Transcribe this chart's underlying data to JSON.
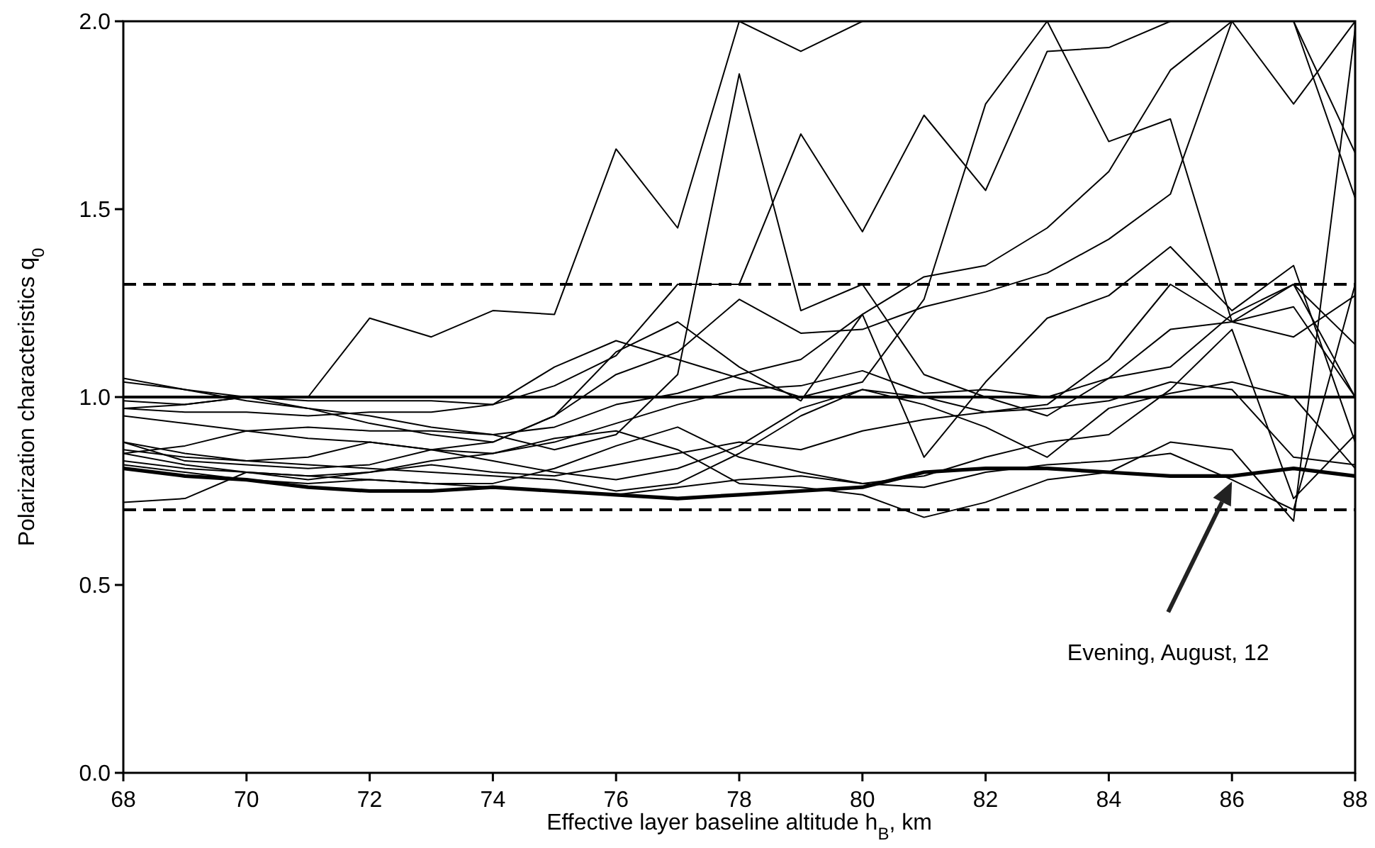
{
  "chart_data": {
    "type": "line",
    "xlabel": "Effective layer baseline altitude h$_{B}$, km",
    "ylabel": "Polarization characteristics q$_{0}$",
    "x": [
      68,
      69,
      70,
      71,
      72,
      73,
      74,
      75,
      76,
      77,
      78,
      79,
      80,
      81,
      82,
      83,
      84,
      85,
      86,
      87,
      88
    ],
    "xlim": [
      68,
      88
    ],
    "xticks": [
      68,
      70,
      72,
      74,
      76,
      78,
      80,
      82,
      84,
      86,
      88
    ],
    "ylim": [
      0,
      2
    ],
    "yticks": [
      {
        "value": 0,
        "label": "0.0"
      },
      {
        "value": 0.5,
        "label": "0.5"
      },
      {
        "value": 1,
        "label": "1.0"
      },
      {
        "value": 1.5,
        "label": "1.5"
      },
      {
        "value": 2,
        "label": "2.0"
      }
    ],
    "grid": false,
    "marker": "none",
    "line_style": "solid",
    "ref_lines": [
      {
        "axis": "y",
        "value": 1.3,
        "color": "#000000",
        "line_style": "dashed"
      },
      {
        "axis": "y",
        "value": 1.0,
        "color": "#000000",
        "line_style": "solid"
      },
      {
        "axis": "y",
        "value": 0.7,
        "color": "#000000",
        "line_style": "dashed"
      }
    ],
    "series": [
      {
        "color": "#000000",
        "values": [
          0.97,
          0.98,
          1.0,
          1.0,
          1.21,
          1.16,
          1.23,
          1.22,
          1.66,
          1.45,
          2.0,
          1.92,
          2.0,
          2.0,
          2.0,
          2.0,
          2.0,
          2.0,
          2.0,
          2.0,
          2.0
        ]
      },
      {
        "color": "#000000",
        "values": [
          1.05,
          1.02,
          0.99,
          0.97,
          0.95,
          0.92,
          0.9,
          0.86,
          0.9,
          1.06,
          1.86,
          1.23,
          1.3,
          1.06,
          1.0,
          0.95,
          1.05,
          1.18,
          1.2,
          1.3,
          1.0
        ]
      },
      {
        "color": "#000000",
        "values": [
          0.99,
          0.98,
          1.0,
          0.99,
          0.99,
          0.99,
          0.98,
          1.03,
          1.11,
          1.3,
          1.3,
          1.7,
          1.44,
          1.75,
          1.55,
          1.92,
          1.93,
          2.0,
          2.0,
          1.78,
          2.0
        ]
      },
      {
        "color": "#000000",
        "values": [
          1.04,
          1.02,
          1.0,
          0.97,
          0.93,
          0.9,
          0.88,
          0.95,
          1.06,
          1.12,
          1.26,
          1.17,
          1.18,
          1.24,
          1.28,
          1.33,
          1.42,
          1.54,
          2.0,
          2.0,
          1.65
        ]
      },
      {
        "color": "#000000",
        "values": [
          0.97,
          0.96,
          0.96,
          0.95,
          0.96,
          0.96,
          0.98,
          1.08,
          1.15,
          1.1,
          1.05,
          1.0,
          1.04,
          1.26,
          1.78,
          2.0,
          1.68,
          1.74,
          1.2,
          1.16,
          1.27
        ]
      },
      {
        "color": "#000000",
        "values": [
          0.88,
          0.83,
          0.82,
          0.81,
          0.82,
          0.86,
          0.88,
          0.95,
          1.12,
          1.2,
          1.08,
          0.99,
          1.22,
          0.84,
          1.04,
          1.21,
          1.27,
          1.4,
          1.23,
          1.35,
          0.88
        ]
      },
      {
        "color": "#000000",
        "values": [
          0.95,
          0.93,
          0.91,
          0.92,
          0.91,
          0.91,
          0.9,
          0.92,
          0.98,
          1.01,
          1.06,
          1.1,
          1.22,
          1.32,
          1.35,
          1.45,
          1.6,
          1.87,
          2.0,
          2.0,
          1.53
        ]
      },
      {
        "color": "#000000",
        "values": [
          0.85,
          0.87,
          0.91,
          0.89,
          0.88,
          0.86,
          0.85,
          0.88,
          0.93,
          0.98,
          1.02,
          1.03,
          1.07,
          1.01,
          1.02,
          1.0,
          1.05,
          1.08,
          1.22,
          1.3,
          1.14
        ]
      },
      {
        "color": "#000000",
        "values": [
          0.86,
          0.84,
          0.83,
          0.84,
          0.88,
          0.86,
          0.83,
          0.8,
          0.78,
          0.81,
          0.87,
          0.97,
          1.02,
          1.0,
          0.96,
          0.97,
          0.99,
          1.04,
          1.02,
          0.84,
          0.82
        ]
      },
      {
        "color": "#000000",
        "values": [
          0.83,
          0.81,
          0.8,
          0.79,
          0.8,
          0.82,
          0.8,
          0.79,
          0.82,
          0.85,
          0.88,
          0.86,
          0.91,
          0.94,
          0.96,
          0.98,
          1.1,
          1.3,
          1.2,
          1.24,
          1.0
        ]
      },
      {
        "color": "#000000",
        "values": [
          0.82,
          0.8,
          0.78,
          0.77,
          0.78,
          0.77,
          0.77,
          0.81,
          0.87,
          0.92,
          0.84,
          0.8,
          0.77,
          0.79,
          0.84,
          0.88,
          0.9,
          1.02,
          1.18,
          0.73,
          0.9
        ]
      },
      {
        "color": "#000000",
        "values": [
          0.72,
          0.73,
          0.8,
          0.78,
          0.8,
          0.83,
          0.85,
          0.89,
          0.91,
          0.86,
          0.77,
          0.76,
          0.74,
          0.68,
          0.72,
          0.78,
          0.8,
          0.88,
          0.86,
          0.67,
          1.98
        ]
      },
      {
        "color": "#000000",
        "values": [
          0.88,
          0.85,
          0.83,
          0.82,
          0.81,
          0.8,
          0.79,
          0.78,
          0.75,
          0.77,
          0.85,
          0.95,
          1.02,
          0.98,
          0.92,
          0.84,
          0.97,
          1.01,
          1.04,
          1.0,
          0.81
        ]
      },
      {
        "color": "#000000",
        "values": [
          0.85,
          0.82,
          0.8,
          0.79,
          0.78,
          0.77,
          0.76,
          0.75,
          0.74,
          0.76,
          0.78,
          0.79,
          0.77,
          0.76,
          0.8,
          0.82,
          0.83,
          0.85,
          0.78,
          0.7,
          1.3
        ]
      },
      {
        "name": "Evening, August, 12",
        "color": "#000000",
        "values": [
          0.81,
          0.79,
          0.78,
          0.76,
          0.75,
          0.75,
          0.76,
          0.75,
          0.74,
          0.73,
          0.74,
          0.75,
          0.76,
          0.8,
          0.81,
          0.81,
          0.8,
          0.79,
          0.79,
          0.81,
          0.79
        ]
      }
    ]
  }
}
